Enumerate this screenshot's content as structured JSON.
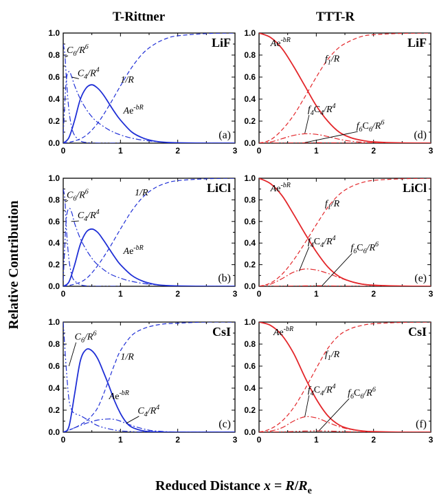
{
  "figure": {
    "column_titles": [
      "T-Rittner",
      "TTT-R"
    ],
    "ylabel": "Relative Contribution",
    "xlabel": "Reduced Distance x = R/Re",
    "colors": {
      "blue": "#1f2fd6",
      "red": "#e3262a"
    }
  },
  "chart_data": [
    {
      "type": "line",
      "panel_label": "(a)",
      "salt": "LiF",
      "model": "T-Rittner",
      "xlim": [
        0,
        3
      ],
      "ylim": [
        0,
        1.0
      ],
      "xticks": [
        "0",
        "1",
        "2",
        "3"
      ],
      "yticks": [
        "0.0",
        "0.2",
        "0.4",
        "0.6",
        "0.8",
        "1.0"
      ],
      "series": [
        {
          "name": "Ae-bR",
          "style": "solid",
          "x": [
            0,
            0.1,
            0.2,
            0.3,
            0.4,
            0.5,
            0.6,
            0.7,
            0.8,
            0.9,
            1.0,
            1.2,
            1.4,
            1.6,
            1.8,
            2.0,
            2.5,
            3.0
          ],
          "y": [
            0,
            0.05,
            0.21,
            0.4,
            0.5,
            0.53,
            0.5,
            0.44,
            0.36,
            0.28,
            0.21,
            0.1,
            0.045,
            0.018,
            0.007,
            0.003,
            0,
            0
          ]
        },
        {
          "name": "1/R",
          "style": "dashed",
          "x": [
            0,
            0.2,
            0.4,
            0.6,
            0.8,
            1.0,
            1.2,
            1.4,
            1.6,
            1.8,
            2.0,
            2.5,
            3.0
          ],
          "y": [
            0,
            0.02,
            0.07,
            0.18,
            0.34,
            0.52,
            0.69,
            0.82,
            0.9,
            0.95,
            0.975,
            0.995,
            1.0
          ]
        },
        {
          "name": "C4/R4",
          "style": "dashdot",
          "x": [
            0,
            0.05,
            0.1,
            0.15,
            0.2,
            0.3,
            0.4,
            0.5,
            0.6,
            0.8,
            1.0,
            1.2,
            1.5,
            2.0,
            3.0
          ],
          "y": [
            0.08,
            0.55,
            0.65,
            0.6,
            0.52,
            0.4,
            0.31,
            0.24,
            0.19,
            0.12,
            0.075,
            0.045,
            0.02,
            0.003,
            0
          ]
        },
        {
          "name": "C6/R6",
          "style": "dashdotdot",
          "x": [
            0,
            0.03,
            0.06,
            0.1,
            0.15,
            0.2,
            0.3,
            0.4,
            0.6,
            1.0
          ],
          "y": [
            0.9,
            0.8,
            0.55,
            0.3,
            0.14,
            0.07,
            0.02,
            0.006,
            0,
            0
          ]
        }
      ]
    },
    {
      "type": "line",
      "panel_label": "(b)",
      "salt": "LiCl",
      "model": "T-Rittner",
      "xlim": [
        0,
        3
      ],
      "ylim": [
        0,
        1.0
      ],
      "xticks": [
        "0",
        "1",
        "2",
        "3"
      ],
      "yticks": [
        "0.0",
        "0.2",
        "0.4",
        "0.6",
        "0.8",
        "1.0"
      ],
      "series": [
        {
          "name": "Ae-bR",
          "style": "solid",
          "x": [
            0,
            0.1,
            0.2,
            0.3,
            0.4,
            0.5,
            0.6,
            0.7,
            0.8,
            0.9,
            1.0,
            1.2,
            1.4,
            1.6,
            1.8,
            2.0,
            2.5,
            3.0
          ],
          "y": [
            0,
            0.04,
            0.2,
            0.39,
            0.5,
            0.53,
            0.5,
            0.43,
            0.35,
            0.27,
            0.2,
            0.1,
            0.045,
            0.018,
            0.007,
            0.003,
            0,
            0
          ]
        },
        {
          "name": "1/R",
          "style": "dashed",
          "x": [
            0,
            0.2,
            0.4,
            0.6,
            0.8,
            1.0,
            1.2,
            1.4,
            1.6,
            1.8,
            2.0,
            2.5,
            3.0
          ],
          "y": [
            0,
            0.02,
            0.07,
            0.19,
            0.35,
            0.53,
            0.7,
            0.83,
            0.91,
            0.955,
            0.978,
            0.995,
            1.0
          ]
        },
        {
          "name": "C4/R4",
          "style": "dashdot",
          "x": [
            0,
            0.05,
            0.1,
            0.15,
            0.2,
            0.3,
            0.4,
            0.5,
            0.6,
            0.8,
            1.0,
            1.2,
            1.5,
            2.0,
            3.0
          ],
          "y": [
            0.05,
            0.6,
            0.72,
            0.68,
            0.58,
            0.44,
            0.34,
            0.26,
            0.2,
            0.12,
            0.075,
            0.045,
            0.02,
            0.003,
            0
          ]
        },
        {
          "name": "C6/R6",
          "style": "dashdotdot",
          "x": [
            0,
            0.03,
            0.06,
            0.1,
            0.15,
            0.2,
            0.3,
            0.4,
            0.6,
            1.0
          ],
          "y": [
            0.9,
            0.8,
            0.5,
            0.25,
            0.1,
            0.05,
            0.015,
            0.004,
            0,
            0
          ]
        }
      ]
    },
    {
      "type": "line",
      "panel_label": "(c)",
      "salt": "CsI",
      "model": "T-Rittner",
      "xlim": [
        0,
        3
      ],
      "ylim": [
        0,
        1.0
      ],
      "xticks": [
        "0",
        "1",
        "2",
        "3"
      ],
      "yticks": [
        "0.0",
        "0.2",
        "0.4",
        "0.6",
        "0.8",
        "1.0"
      ],
      "series": [
        {
          "name": "Ae-bR",
          "style": "solid",
          "x": [
            0,
            0.1,
            0.2,
            0.3,
            0.4,
            0.5,
            0.6,
            0.7,
            0.8,
            0.9,
            1.0,
            1.1,
            1.2,
            1.4,
            1.6,
            2.0,
            3.0
          ],
          "y": [
            0,
            0.05,
            0.35,
            0.65,
            0.75,
            0.74,
            0.67,
            0.55,
            0.42,
            0.28,
            0.17,
            0.09,
            0.045,
            0.012,
            0.003,
            0,
            0
          ]
        },
        {
          "name": "1/R",
          "style": "dashed",
          "x": [
            0,
            0.2,
            0.4,
            0.5,
            0.6,
            0.7,
            0.8,
            0.9,
            1.0,
            1.2,
            1.4,
            1.6,
            1.8,
            2.0,
            2.5,
            3.0
          ],
          "y": [
            0,
            0.04,
            0.1,
            0.15,
            0.22,
            0.34,
            0.48,
            0.62,
            0.74,
            0.88,
            0.94,
            0.97,
            0.985,
            0.99,
            1.0,
            1.0
          ]
        },
        {
          "name": "C4/R4",
          "style": "dashdot",
          "x": [
            0,
            0.2,
            0.4,
            0.6,
            0.8,
            0.9,
            1.0,
            1.2,
            1.4,
            1.6,
            2.0,
            3.0
          ],
          "y": [
            0,
            0.04,
            0.08,
            0.11,
            0.12,
            0.115,
            0.1,
            0.06,
            0.03,
            0.012,
            0.002,
            0
          ]
        },
        {
          "name": "C6/R6",
          "style": "dashdotdot",
          "x": [
            0,
            0.05,
            0.1,
            0.15,
            0.2,
            0.3,
            0.4,
            0.6,
            0.8,
            1.0,
            1.4,
            2.0,
            3.0
          ],
          "y": [
            1.0,
            0.6,
            0.3,
            0.2,
            0.17,
            0.15,
            0.12,
            0.06,
            0.03,
            0.012,
            0.002,
            0,
            0
          ]
        }
      ]
    },
    {
      "type": "line",
      "panel_label": "(d)",
      "salt": "LiF",
      "model": "TTT-R",
      "xlim": [
        0,
        3
      ],
      "ylim": [
        0,
        1.0
      ],
      "xticks": [
        "0",
        "1",
        "2",
        "3"
      ],
      "yticks": [
        "0.0",
        "0.2",
        "0.4",
        "0.6",
        "0.8",
        "1.0"
      ],
      "series": [
        {
          "name": "Ae-bR",
          "style": "solid",
          "x": [
            0,
            0.2,
            0.4,
            0.6,
            0.8,
            1.0,
            1.2,
            1.4,
            1.6,
            1.8,
            2.0,
            2.5,
            3.0
          ],
          "y": [
            1.0,
            0.96,
            0.86,
            0.7,
            0.52,
            0.34,
            0.2,
            0.1,
            0.05,
            0.025,
            0.012,
            0.002,
            0
          ]
        },
        {
          "name": "f1/R",
          "style": "dashed",
          "x": [
            0,
            0.2,
            0.4,
            0.6,
            0.8,
            1.0,
            1.2,
            1.4,
            1.6,
            1.8,
            2.0,
            2.5,
            3.0
          ],
          "y": [
            0,
            0.03,
            0.12,
            0.25,
            0.42,
            0.6,
            0.76,
            0.87,
            0.93,
            0.97,
            0.985,
            0.997,
            1.0
          ]
        },
        {
          "name": "f4C4/R4",
          "style": "dashdot",
          "x": [
            0,
            0.2,
            0.4,
            0.6,
            0.8,
            1.0,
            1.2,
            1.4,
            1.6,
            1.8,
            2.0,
            2.5,
            3.0
          ],
          "y": [
            0,
            0.01,
            0.04,
            0.07,
            0.085,
            0.08,
            0.06,
            0.035,
            0.018,
            0.008,
            0.003,
            0,
            0
          ]
        },
        {
          "name": "f6C6/R6",
          "style": "dashdotdot",
          "x": [
            0,
            0.4,
            0.8,
            1.0,
            1.2,
            1.6,
            2.0,
            3.0
          ],
          "y": [
            0,
            0.001,
            0.003,
            0.004,
            0.003,
            0.001,
            0,
            0
          ]
        }
      ]
    },
    {
      "type": "line",
      "panel_label": "(e)",
      "salt": "LiCl",
      "model": "TTT-R",
      "xlim": [
        0,
        3
      ],
      "ylim": [
        0,
        1.0
      ],
      "xticks": [
        "0",
        "1",
        "2",
        "3"
      ],
      "yticks": [
        "0.0",
        "0.2",
        "0.4",
        "0.6",
        "0.8",
        "1.0"
      ],
      "series": [
        {
          "name": "Ae-bR",
          "style": "solid",
          "x": [
            0,
            0.2,
            0.4,
            0.6,
            0.8,
            1.0,
            1.2,
            1.4,
            1.6,
            1.8,
            2.0,
            2.5,
            3.0
          ],
          "y": [
            1.0,
            0.95,
            0.84,
            0.67,
            0.49,
            0.32,
            0.18,
            0.09,
            0.045,
            0.02,
            0.01,
            0.002,
            0
          ]
        },
        {
          "name": "f1/R",
          "style": "dashed",
          "x": [
            0,
            0.2,
            0.4,
            0.6,
            0.8,
            1.0,
            1.2,
            1.4,
            1.6,
            1.8,
            2.0,
            2.5,
            3.0
          ],
          "y": [
            0,
            0.03,
            0.11,
            0.24,
            0.4,
            0.57,
            0.73,
            0.85,
            0.92,
            0.96,
            0.98,
            0.995,
            1.0
          ]
        },
        {
          "name": "f4C4/R4",
          "style": "dashdot",
          "x": [
            0,
            0.2,
            0.4,
            0.6,
            0.8,
            1.0,
            1.2,
            1.4,
            1.6,
            1.8,
            2.0,
            2.5,
            3.0
          ],
          "y": [
            0,
            0.02,
            0.07,
            0.13,
            0.16,
            0.15,
            0.12,
            0.08,
            0.045,
            0.022,
            0.01,
            0.002,
            0
          ]
        },
        {
          "name": "f6C6/R6",
          "style": "dashdotdot",
          "x": [
            0,
            0.4,
            0.8,
            1.0,
            1.2,
            1.6,
            2.0,
            3.0
          ],
          "y": [
            0,
            0.001,
            0.004,
            0.005,
            0.004,
            0.001,
            0,
            0
          ]
        }
      ]
    },
    {
      "type": "line",
      "panel_label": "(f)",
      "salt": "CsI",
      "model": "TTT-R",
      "xlim": [
        0,
        3
      ],
      "ylim": [
        0,
        1.0
      ],
      "xticks": [
        "0",
        "1",
        "2",
        "3"
      ],
      "yticks": [
        "0.0",
        "0.2",
        "0.4",
        "0.6",
        "0.8",
        "1.0"
      ],
      "series": [
        {
          "name": "Ae-bR",
          "style": "solid",
          "x": [
            0,
            0.2,
            0.4,
            0.6,
            0.8,
            1.0,
            1.2,
            1.4,
            1.6,
            1.8,
            2.0,
            2.5,
            3.0
          ],
          "y": [
            1.0,
            0.97,
            0.88,
            0.72,
            0.5,
            0.3,
            0.15,
            0.065,
            0.028,
            0.012,
            0.005,
            0,
            0
          ]
        },
        {
          "name": "f1/R",
          "style": "dashed",
          "x": [
            0,
            0.2,
            0.4,
            0.6,
            0.8,
            1.0,
            1.2,
            1.4,
            1.6,
            1.8,
            2.0,
            2.5,
            3.0
          ],
          "y": [
            0,
            0.03,
            0.1,
            0.22,
            0.39,
            0.58,
            0.76,
            0.88,
            0.94,
            0.97,
            0.985,
            0.997,
            1.0
          ]
        },
        {
          "name": "f4C4/R4",
          "style": "dashdot",
          "x": [
            0,
            0.2,
            0.4,
            0.6,
            0.8,
            1.0,
            1.2,
            1.4,
            1.6,
            1.8,
            2.0,
            2.5,
            3.0
          ],
          "y": [
            0,
            0.01,
            0.04,
            0.1,
            0.14,
            0.13,
            0.09,
            0.05,
            0.025,
            0.012,
            0.005,
            0,
            0
          ]
        },
        {
          "name": "f6C6/R6",
          "style": "dashdotdot",
          "x": [
            0,
            0.4,
            0.8,
            1.0,
            1.2,
            1.6,
            2.0,
            3.0
          ],
          "y": [
            0,
            0.003,
            0.01,
            0.012,
            0.01,
            0.004,
            0.001,
            0
          ]
        }
      ]
    }
  ]
}
